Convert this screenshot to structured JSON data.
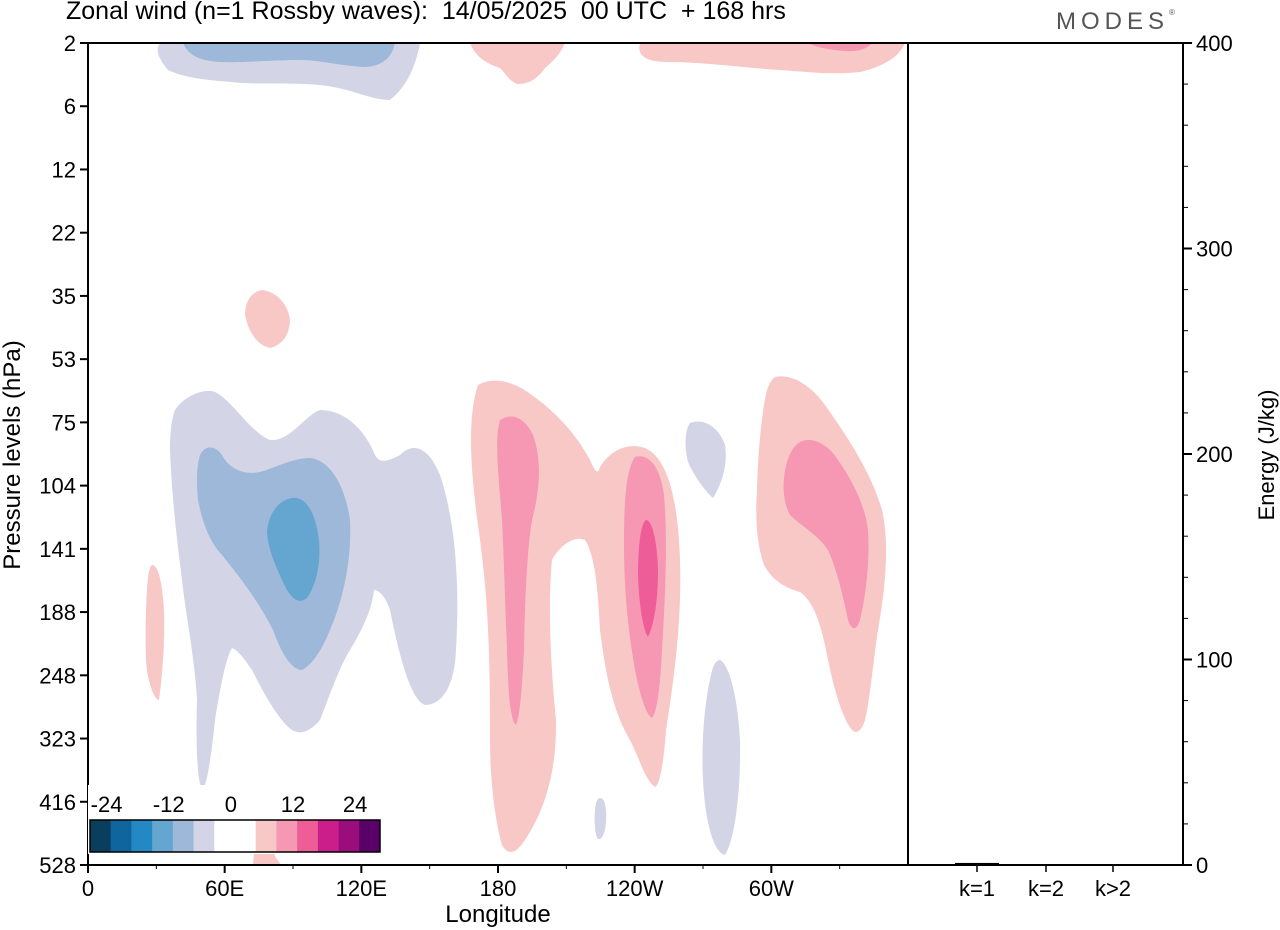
{
  "header": {
    "title": "Zonal wind (n=1 Rossby waves):  14/05/2025  00 UTC  + 168 hrs",
    "brand": "MODES",
    "brand_mark": "®"
  },
  "chart_data": [
    {
      "type": "heatmap",
      "title": "Zonal wind (n=1 Rossby waves):  14/05/2025  00 UTC  + 168 hrs",
      "xlabel": "Longitude",
      "ylabel": "Pressure levels (hPa)",
      "x_ticks": [
        "0",
        "60E",
        "120E",
        "180",
        "120W",
        "60W"
      ],
      "x_tick_values": [
        0,
        60,
        120,
        180,
        240,
        300
      ],
      "xlim": [
        0,
        360
      ],
      "y_ticks": [
        "2",
        "6",
        "12",
        "22",
        "35",
        "53",
        "75",
        "104",
        "141",
        "188",
        "248",
        "323",
        "416",
        "528"
      ],
      "y_scale": "pressure levels, equally spaced, inverted (2 top, 528 bottom)",
      "colorbar": {
        "tick_labels": [
          "-24",
          "-12",
          "0",
          "12",
          "24"
        ],
        "colors": [
          "#0a3e5e",
          "#0f669f",
          "#2289c4",
          "#65a6d0",
          "#9db8d9",
          "#d3d5e7",
          "#ffffff",
          "#ffffff",
          "#f8c8c7",
          "#f697b3",
          "#ee5d98",
          "#cc1e8a",
          "#9b0d7d",
          "#5a0069"
        ],
        "placement": "bottom-left inset"
      },
      "contours": [
        {
          "name": "west-pacific-negative",
          "level": -4,
          "center": {
            "lon": 75,
            "hPa": 141
          },
          "extent": {
            "lon": [
              40,
              145
            ],
            "hPa": [
              75,
              323
            ]
          }
        },
        {
          "name": "west-pacific-negative-core",
          "level": -8,
          "center": {
            "lon": 70,
            "hPa": 141
          },
          "extent": {
            "lon": [
              47,
              105
            ],
            "hPa": [
              104,
              248
            ]
          }
        },
        {
          "name": "west-pacific-negative-max",
          "level": -12,
          "center": {
            "lon": 88,
            "hPa": 141
          },
          "extent": {
            "lon": [
              78,
              98
            ],
            "hPa": [
              104,
              188
            ]
          }
        },
        {
          "name": "upper-negative",
          "level": -8,
          "center": {
            "lon": 70,
            "hPa": 2
          },
          "extent": {
            "lon": [
              35,
              135
            ],
            "hPa": [
              2,
              6
            ]
          }
        },
        {
          "name": "dateline-positive",
          "level": 4,
          "center": {
            "lon": 195,
            "hPa": 141
          },
          "extent": {
            "lon": [
              168,
              265
            ],
            "hPa": [
              53,
              528
            ]
          }
        },
        {
          "name": "dateline-positive-core",
          "level": 8,
          "center": {
            "lon": 188,
            "hPa": 141
          },
          "extent": {
            "lon": [
              178,
              198
            ],
            "hPa": [
              75,
              323
            ]
          }
        },
        {
          "name": "pacific-positive-core",
          "level": 8,
          "center": {
            "lon": 245,
            "hPa": 141
          },
          "extent": {
            "lon": [
              236,
              256
            ],
            "hPa": [
              104,
              323
            ]
          }
        },
        {
          "name": "pacific-positive-max",
          "level": 12,
          "center": {
            "lon": 245,
            "hPa": 141
          },
          "extent": {
            "lon": [
              241,
              249
            ],
            "hPa": [
              104,
              188
            ]
          }
        },
        {
          "name": "america-positive",
          "level": 4,
          "center": {
            "lon": 305,
            "hPa": 141
          },
          "extent": {
            "lon": [
              295,
              350
            ],
            "hPa": [
              53,
              323
            ]
          }
        },
        {
          "name": "america-positive-core",
          "level": 8,
          "center": {
            "lon": 320,
            "hPa": 141
          },
          "extent": {
            "lon": [
              308,
              342
            ],
            "hPa": [
              75,
              248
            ]
          }
        }
      ]
    },
    {
      "type": "bar",
      "ylabel": "Energy (J/kg)",
      "categories": [
        "k=1",
        "k=2",
        "k>2"
      ],
      "values": [
        1,
        0,
        0
      ],
      "ylim": [
        0,
        400
      ],
      "y_ticks": [
        "0",
        "100",
        "200",
        "300",
        "400"
      ]
    }
  ]
}
